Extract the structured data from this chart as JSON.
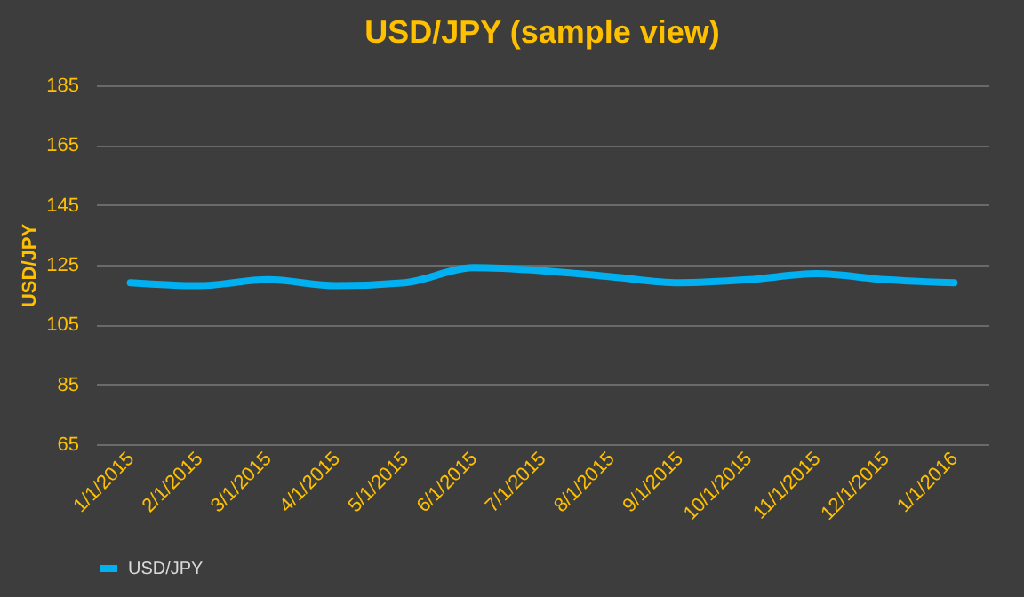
{
  "chart_data": {
    "type": "line",
    "title": "USD/JPY  (sample view)",
    "ylabel": "USD/JPY",
    "categories": [
      "1/1/2015",
      "2/1/2015",
      "3/1/2015",
      "4/1/2015",
      "5/1/2015",
      "6/1/2015",
      "7/1/2015",
      "8/1/2015",
      "9/1/2015",
      "10/1/2015",
      "11/1/2015",
      "12/1/2015",
      "1/1/2016"
    ],
    "series": [
      {
        "name": "USD/JPY",
        "color": "#00b0f0",
        "values": [
          119,
          118,
          120,
          118,
          119,
          124,
          123,
          121,
          119,
          120,
          122,
          120,
          119
        ]
      }
    ],
    "ylim": [
      65,
      185
    ],
    "yticks": [
      65,
      85,
      105,
      125,
      145,
      165,
      185
    ],
    "grid": "y",
    "legend": "bottom",
    "marker": "none",
    "line_style": "solid"
  }
}
